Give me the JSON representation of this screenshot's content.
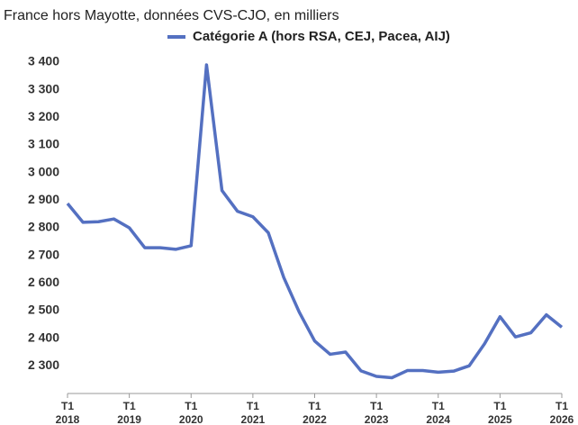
{
  "chart_data": {
    "type": "line",
    "subtitle": "France hors Mayotte, données CVS-CJO, en milliers",
    "categories": [
      "T1 2018",
      null,
      null,
      null,
      "T1 2019",
      null,
      null,
      null,
      "T1 2020",
      null,
      null,
      null,
      "T1 2021",
      null,
      null,
      null,
      "T1 2022",
      null,
      null,
      null,
      "T1 2023",
      null,
      null,
      null,
      "T1 2024",
      null,
      null,
      null,
      "T1 2025",
      null,
      null,
      null,
      "T1 2026"
    ],
    "series": [
      {
        "name": "Catégorie A (hors RSA, CEJ, Pacea, AIJ)",
        "color": "#5470c1",
        "values": [
          2888,
          2820,
          2822,
          2832,
          2800,
          2728,
          2728,
          2722,
          2735,
          3390,
          2935,
          2860,
          2840,
          2782,
          2620,
          2495,
          2390,
          2342,
          2350,
          2282,
          2262,
          2257,
          2283,
          2283,
          2277,
          2281,
          2300,
          2380,
          2478,
          2405,
          2420,
          2485,
          2440
        ]
      }
    ],
    "ylim": [
      2200,
      3400
    ],
    "yticks": [
      {
        "value": 2300,
        "label": "2 300"
      },
      {
        "value": 2400,
        "label": "2 400"
      },
      {
        "value": 2500,
        "label": "2 500"
      },
      {
        "value": 2600,
        "label": "2 600"
      },
      {
        "value": 2700,
        "label": "2 700"
      },
      {
        "value": 2800,
        "label": "2 800"
      },
      {
        "value": 2900,
        "label": "2 900"
      },
      {
        "value": 3000,
        "label": "3 000"
      },
      {
        "value": 3100,
        "label": "3 100"
      },
      {
        "value": 3200,
        "label": "3 200"
      },
      {
        "value": 3300,
        "label": "3 300"
      },
      {
        "value": 3400,
        "label": "3 400"
      }
    ],
    "grid": false,
    "legend": "top"
  }
}
